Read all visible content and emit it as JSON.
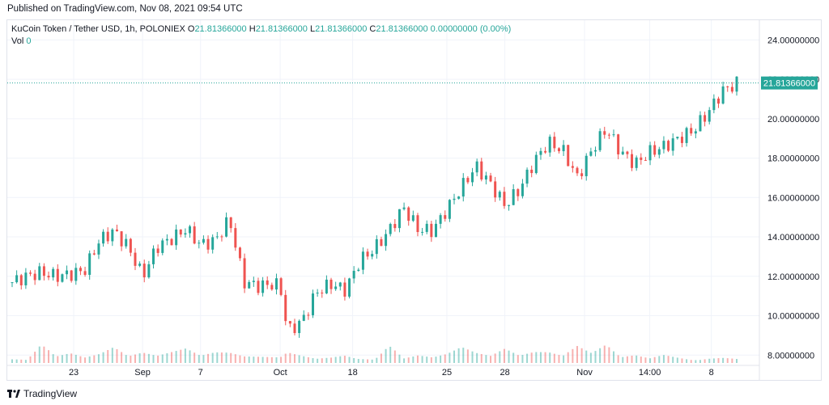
{
  "published": "Published on TradingView.com, Nov 08, 2021 09:54 UTC",
  "legend": {
    "symbol": "KuCoin Token / Tether USD, 1h, POLONIEX",
    "o_label": "O",
    "o": "21.81366000",
    "h_label": "H",
    "h": "21.81366000",
    "l_label": "L",
    "l": "21.81366000",
    "c_label": "C",
    "c": "21.81366000",
    "change": "0.00000000 (0.00%)",
    "vol_label": "Vol",
    "vol": "0"
  },
  "footer": {
    "brand": "TradingView"
  },
  "colors": {
    "up": "#26a69a",
    "down": "#ef5350",
    "grid": "#f0f3fa",
    "text": "#131722",
    "price_tag": "#26a69a"
  },
  "chart_data": {
    "type": "candlestick",
    "title": "KuCoin Token / Tether USD, 1h, POLONIEX",
    "ylim": [
      7.6,
      25.0
    ],
    "y_ticks": [
      "24.00000000",
      "22.00000000",
      "20.00000000",
      "18.00000000",
      "16.00000000",
      "14.00000000",
      "12.00000000",
      "10.00000000",
      "8.00000000"
    ],
    "y_tick_values": [
      24,
      22,
      20,
      18,
      16,
      14,
      12,
      10,
      8
    ],
    "x_ticks": [
      "23",
      "Sep",
      "7",
      "Oct",
      "18",
      "25",
      "28",
      "Nov",
      "14:00",
      "8"
    ],
    "x_tick_positions": [
      0.085,
      0.18,
      0.26,
      0.37,
      0.47,
      0.6,
      0.68,
      0.79,
      0.88,
      0.965
    ],
    "current_price": "21.81366000",
    "current_price_value": 21.81366,
    "x": [
      0.0,
      0.02,
      0.04,
      0.06,
      0.08,
      0.1,
      0.12,
      0.14,
      0.16,
      0.18,
      0.2,
      0.22,
      0.24,
      0.26,
      0.28,
      0.3,
      0.32,
      0.34,
      0.36,
      0.37,
      0.38,
      0.4,
      0.42,
      0.44,
      0.46,
      0.48,
      0.5,
      0.52,
      0.54,
      0.56,
      0.58,
      0.6,
      0.62,
      0.64,
      0.66,
      0.68,
      0.7,
      0.72,
      0.74,
      0.76,
      0.78,
      0.8,
      0.82,
      0.84,
      0.86,
      0.88,
      0.9,
      0.92,
      0.94,
      0.96,
      0.98,
      1.0
    ],
    "close": [
      11.7,
      12.0,
      12.2,
      12.0,
      12.1,
      12.3,
      13.8,
      14.3,
      13.5,
      12.0,
      13.5,
      13.9,
      14.4,
      13.6,
      13.8,
      14.9,
      11.7,
      11.5,
      11.6,
      11.5,
      9.2,
      9.7,
      11.2,
      11.6,
      11.3,
      12.8,
      13.4,
      14.3,
      15.5,
      14.4,
      14.3,
      15.4,
      16.5,
      17.6,
      16.7,
      15.6,
      16.4,
      17.8,
      18.8,
      18.4,
      17.0,
      18.4,
      19.5,
      18.3,
      17.7,
      18.3,
      18.6,
      19.0,
      19.4,
      20.3,
      21.4,
      21.8
    ],
    "vol": [
      0.3,
      0.2,
      1.0,
      0.3,
      0.4,
      0.2,
      0.3,
      0.5,
      0.2,
      0.3,
      0.2,
      0.3,
      0.4,
      0.2,
      0.3,
      0.3,
      0.2,
      0.2,
      0.2,
      0.2,
      0.4,
      0.3,
      0.2,
      0.3,
      0.5,
      0.3,
      0.2,
      0.9,
      0.2,
      0.3,
      0.2,
      0.3,
      0.5,
      0.3,
      0.2,
      0.4,
      0.2,
      0.3,
      0.3,
      0.2,
      0.5,
      0.3,
      0.6,
      0.2,
      0.3,
      0.2,
      0.4,
      0.3,
      0.2,
      0.3,
      0.3,
      0.2
    ]
  }
}
